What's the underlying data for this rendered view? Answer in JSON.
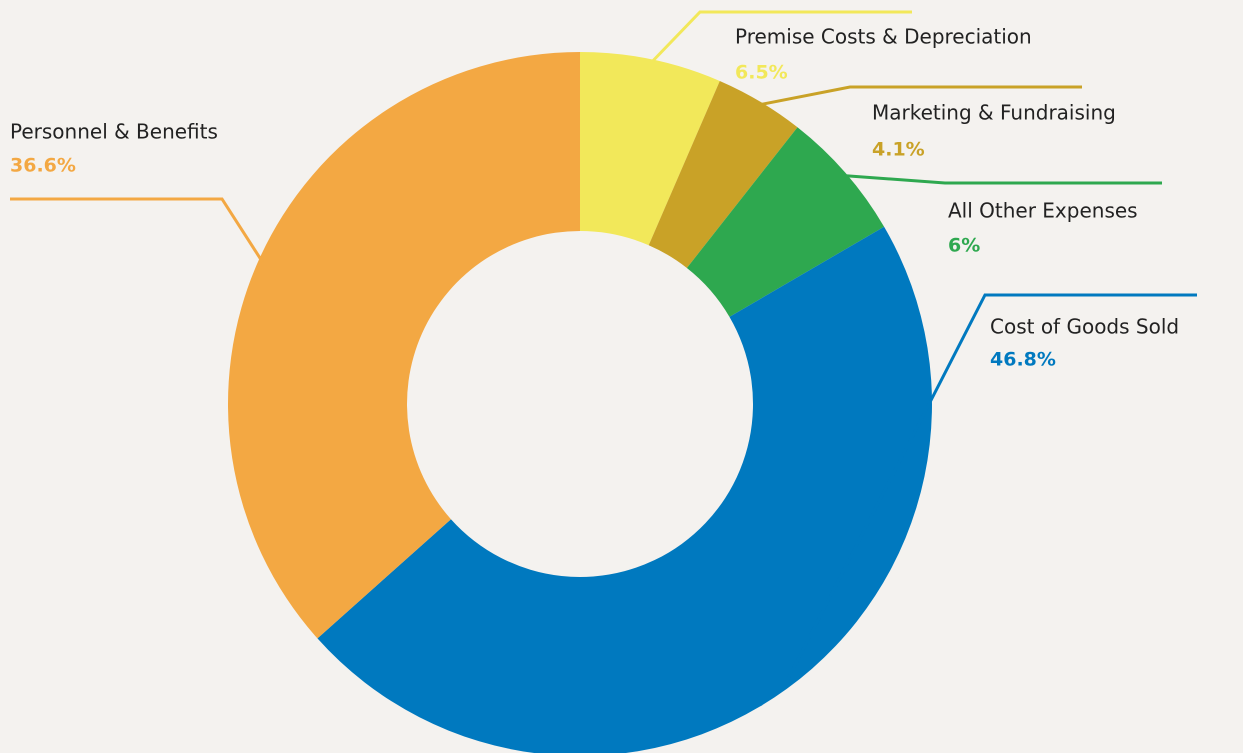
{
  "chart_data": {
    "type": "donut",
    "categories": [
      "Premise Costs & Depreciation",
      "Marketing & Fundraising",
      "All Other Expenses",
      "Cost of Goods Sold",
      "Personnel & Benefits"
    ],
    "values": [
      6.5,
      4.1,
      6,
      46.8,
      36.6
    ],
    "value_labels": [
      "6.5%",
      "4.1%",
      "6%",
      "46.8%",
      "36.6%"
    ],
    "colors": [
      "#f2e85a",
      "#c9a227",
      "#2ea84f",
      "#0079bf",
      "#f3a843"
    ]
  }
}
